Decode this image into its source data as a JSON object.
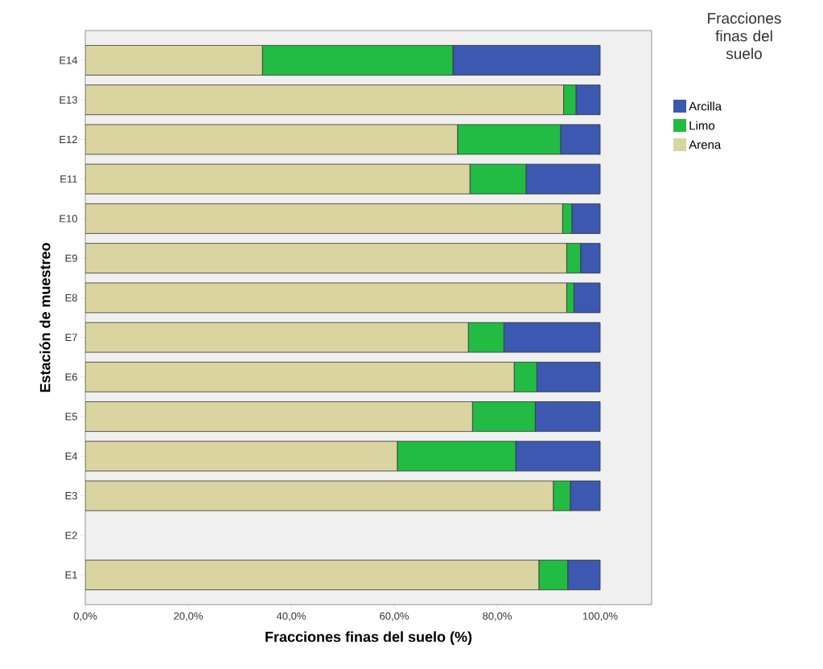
{
  "chart_data": {
    "type": "bar",
    "orientation": "horizontal",
    "stacked": true,
    "xlabel": "Fracciones finas del suelo (%)",
    "ylabel": "Estación de muestreo",
    "legend_title": "Fracciones finas del suelo",
    "legend": "top right",
    "categories": [
      "E14",
      "E13",
      "E12",
      "E11",
      "E10",
      "E9",
      "E8",
      "E7",
      "E6",
      "E5",
      "E4",
      "E3",
      "E2",
      "E1"
    ],
    "xlim": [
      0,
      110
    ],
    "xticks": [
      {
        "value": 0,
        "label": "0,0%"
      },
      {
        "value": 20,
        "label": "20,0%"
      },
      {
        "value": 40,
        "label": "40,0%"
      },
      {
        "value": 60,
        "label": "60,0%"
      },
      {
        "value": 80,
        "label": "80,0%"
      },
      {
        "value": 100,
        "label": "100,0%"
      }
    ],
    "series": [
      {
        "name": "Arena",
        "color": "#d9d4a0",
        "values": [
          34.4,
          92.9,
          72.3,
          74.7,
          92.7,
          93.5,
          93.5,
          74.4,
          83.3,
          75.2,
          60.6,
          90.9,
          null,
          88.1
        ]
      },
      {
        "name": "Limo",
        "color": "#22bb44",
        "values": [
          37.0,
          2.4,
          20.0,
          10.9,
          1.8,
          2.7,
          1.4,
          6.9,
          4.4,
          12.2,
          23.0,
          3.3,
          null,
          5.6
        ]
      },
      {
        "name": "Arcilla",
        "color": "#3c58b0",
        "values": [
          28.6,
          4.7,
          7.7,
          14.4,
          5.5,
          3.8,
          5.1,
          18.7,
          12.3,
          12.6,
          16.4,
          5.8,
          null,
          6.3
        ]
      }
    ]
  }
}
